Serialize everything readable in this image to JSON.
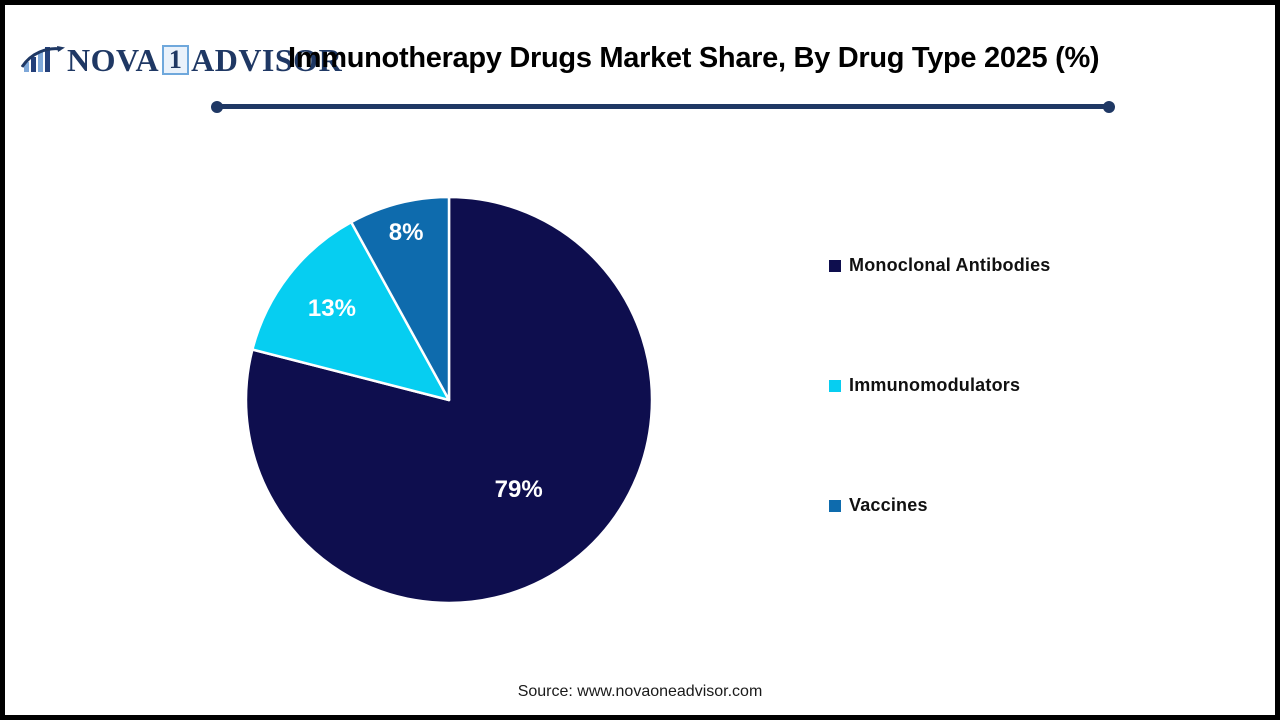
{
  "header": {
    "logo": {
      "nova": "NOVA",
      "one": "1",
      "advisor": "ADVISOR",
      "navy": "#1F3864",
      "light_blue": "#7FA8D9"
    },
    "title": "Immunotherapy Drugs Market Share, By Drug Type 2025 (%)"
  },
  "chart_data": {
    "type": "pie",
    "title": "Immunotherapy Drugs Market Share, By Drug Type 2025 (%)",
    "categories": [
      "Monoclonal Antibodies",
      "Immunomodulators",
      "Vaccines"
    ],
    "values": [
      79,
      13,
      8
    ],
    "unit": "%",
    "colors": [
      "#0E0E4E",
      "#06CEF1",
      "#0E6BAD"
    ],
    "slice_label_format": "{value}%",
    "start_angle": "12-o-clock",
    "direction": "clockwise",
    "legend_position": "right",
    "separator_color": "#FFFFFF"
  },
  "footer": {
    "source": "Source: www.novaoneadvisor.com"
  },
  "style": {
    "divider_color": "#1F3864",
    "frame_border_color": "#000000"
  }
}
